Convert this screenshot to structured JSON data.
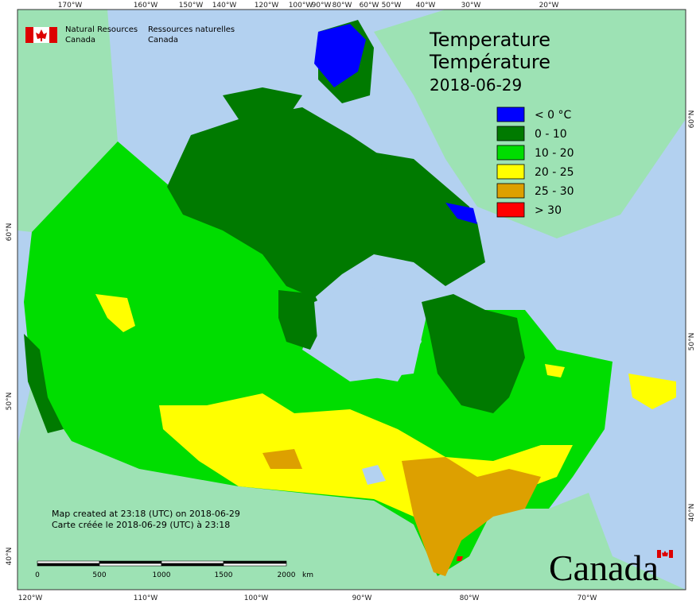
{
  "header": {
    "agency_en": [
      "Natural Resources",
      "Canada"
    ],
    "agency_fr": [
      "Ressources naturelles",
      "Canada"
    ]
  },
  "title": {
    "lines": [
      "Temperature",
      "Température",
      "2018-06-29"
    ]
  },
  "legend": [
    {
      "label": "< 0 °C",
      "color": "#0000ff"
    },
    {
      "label": "0 - 10",
      "color": "#007a00"
    },
    {
      "label": "10 - 20",
      "color": "#00dd00"
    },
    {
      "label": "20 - 25",
      "color": "#ffff00"
    },
    {
      "label": "25 - 30",
      "color": "#dda000"
    },
    {
      "label": "> 30",
      "color": "#ff0000"
    }
  ],
  "graticule": {
    "top": [
      "170°W",
      "160°W",
      "150°W",
      "140°W",
      "120°W",
      "100°W",
      "90°W",
      "80°W",
      "60°W",
      "50°W",
      "40°W",
      "30°W",
      "20°W"
    ],
    "bottom": [
      "120°W",
      "110°W",
      "100°W",
      "90°W",
      "80°W",
      "70°W"
    ],
    "left": [
      "60°N",
      "50°N",
      "40°N"
    ],
    "right": [
      "60°N",
      "50°N",
      "40°N"
    ]
  },
  "scale_bar": {
    "labels": [
      "0",
      "500",
      "1000",
      "1500",
      "2000"
    ],
    "unit": "km"
  },
  "credits": [
    "Map created at 23:18 (UTC) on 2018-06-29",
    "Carte créée le 2018-06-29 (UTC) à 23:18"
  ],
  "wordmark": "Canada"
}
